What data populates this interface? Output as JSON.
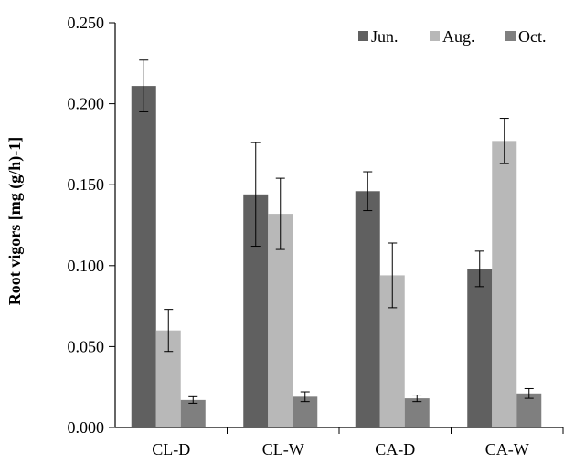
{
  "chart_data": {
    "type": "bar",
    "title": "",
    "xlabel": "",
    "ylabel": "Root vigors [mg (g/h)-1]",
    "ylim": [
      0,
      0.25
    ],
    "yticks": [
      "0.000",
      "0.050",
      "0.100",
      "0.150",
      "0.200",
      "0.250"
    ],
    "categories": [
      "CL-D",
      "CL-W",
      "CA-D",
      "CA-W"
    ],
    "legend_position": "top-right",
    "series": [
      {
        "name": "Jun.",
        "color": "#606060",
        "values": [
          0.211,
          0.144,
          0.146,
          0.098
        ],
        "errors": [
          0.016,
          0.032,
          0.012,
          0.011
        ]
      },
      {
        "name": "Aug.",
        "color": "#b8b8b8",
        "values": [
          0.06,
          0.132,
          0.094,
          0.177
        ],
        "errors": [
          0.013,
          0.022,
          0.02,
          0.014
        ]
      },
      {
        "name": "Oct.",
        "color": "#7f7f7f",
        "values": [
          0.017,
          0.019,
          0.018,
          0.021
        ],
        "errors": [
          0.002,
          0.003,
          0.002,
          0.003
        ]
      }
    ]
  }
}
